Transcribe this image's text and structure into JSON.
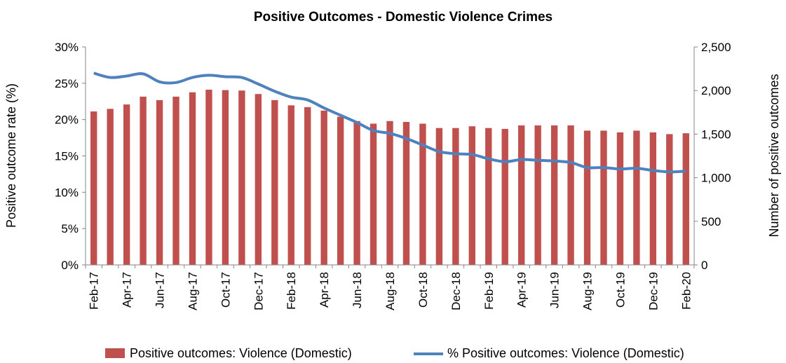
{
  "chart_data": {
    "type": "bar",
    "title": "Positive Outcomes - Domestic Violence Crimes",
    "xlabel": "",
    "ylabel": "Positive outcome rate (%)",
    "y2label": "Number of positive outcomes",
    "categories": [
      "Feb-17",
      "Mar-17",
      "Apr-17",
      "May-17",
      "Jun-17",
      "Jul-17",
      "Aug-17",
      "Sep-17",
      "Oct-17",
      "Nov-17",
      "Dec-17",
      "Jan-18",
      "Feb-18",
      "Mar-18",
      "Apr-18",
      "May-18",
      "Jun-18",
      "Jul-18",
      "Aug-18",
      "Sep-18",
      "Oct-18",
      "Nov-18",
      "Dec-18",
      "Jan-19",
      "Feb-19",
      "Mar-19",
      "Apr-19",
      "May-19",
      "Jun-19",
      "Jul-19",
      "Aug-19",
      "Sep-19",
      "Oct-19",
      "Nov-19",
      "Dec-19",
      "Jan-20",
      "Feb-20"
    ],
    "tick_labels": [
      "Feb-17",
      "Apr-17",
      "Jun-17",
      "Aug-17",
      "Oct-17",
      "Dec-17",
      "Feb-18",
      "Apr-18",
      "Jun-18",
      "Aug-18",
      "Oct-18",
      "Dec-18",
      "Feb-19",
      "Apr-19",
      "Jun-19",
      "Aug-19",
      "Oct-19",
      "Dec-19",
      "Feb-20"
    ],
    "ylim": [
      0,
      30
    ],
    "y_ticks": [
      "0%",
      "5%",
      "10%",
      "15%",
      "20%",
      "25%",
      "30%"
    ],
    "y2lim": [
      0,
      2500
    ],
    "y2_ticks": [
      "0",
      "500",
      "1,000",
      "1,500",
      "2,000",
      "2,500"
    ],
    "series": [
      {
        "name": "Positive outcomes:  Violence (Domestic)",
        "type": "bar",
        "axis": "right",
        "color": "#C0504D",
        "values": [
          1760,
          1790,
          1840,
          1930,
          1890,
          1930,
          1980,
          2010,
          2005,
          2000,
          1960,
          1890,
          1830,
          1810,
          1770,
          1700,
          1650,
          1620,
          1650,
          1640,
          1620,
          1570,
          1570,
          1590,
          1570,
          1560,
          1600,
          1600,
          1600,
          1600,
          1540,
          1540,
          1520,
          1540,
          1520,
          1500,
          1510
        ]
      },
      {
        "name": "% Positive outcomes: Violence (Domestic)",
        "type": "line",
        "axis": "left",
        "color": "#4F81BD",
        "values": [
          26.4,
          25.8,
          26.0,
          26.3,
          25.2,
          25.1,
          25.8,
          26.1,
          25.9,
          25.8,
          24.9,
          23.9,
          23.1,
          22.7,
          21.6,
          20.6,
          19.6,
          18.5,
          18.1,
          17.4,
          16.5,
          15.6,
          15.3,
          15.2,
          14.6,
          14.2,
          14.5,
          14.4,
          14.3,
          14.1,
          13.4,
          13.4,
          13.2,
          13.3,
          13.0,
          12.8,
          12.9
        ]
      }
    ],
    "legend": "bottom",
    "grid": false
  }
}
